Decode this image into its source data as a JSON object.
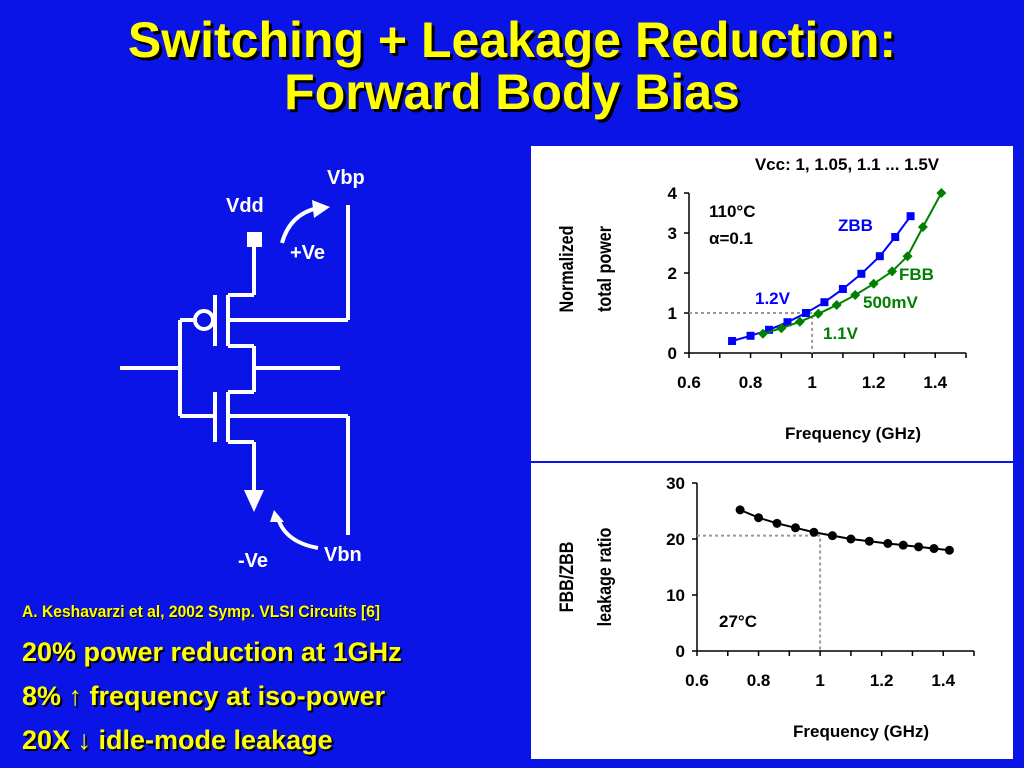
{
  "slide": {
    "title_line1": "Switching + Leakage Reduction:",
    "title_line2": "Forward Body Bias",
    "citation": "A. Keshavarzi et al, 2002 Symp. VLSI Circuits [6]",
    "bullets": [
      "20% power reduction at 1GHz",
      "8% ↑ frequency at iso-power",
      "20X ↓ idle-mode leakage"
    ]
  },
  "circuit": {
    "vdd": "Vdd",
    "vbp": "Vbp",
    "vbn": "Vbn",
    "plus_ve": "+Ve",
    "minus_ve": "-Ve"
  },
  "chart_data": [
    {
      "type": "line",
      "title": "Vcc: 1, 1.05, 1.1 ... 1.5V",
      "xlabel": "Frequency (GHz)",
      "ylabel": "Normalized total power",
      "xlim": [
        0.6,
        1.5
      ],
      "ylim": [
        0,
        4
      ],
      "xticks": [
        "0.6",
        "0.8",
        "1",
        "1.2",
        "1.4"
      ],
      "yticks": [
        "0",
        "1",
        "2",
        "3",
        "4"
      ],
      "grid": false,
      "series": [
        {
          "name": "ZBB",
          "color": "#0000ff",
          "marker": "square",
          "x": [
            0.74,
            0.8,
            0.86,
            0.92,
            0.98,
            1.04,
            1.1,
            1.16,
            1.22,
            1.27,
            1.32
          ],
          "y": [
            0.3,
            0.43,
            0.58,
            0.77,
            1.0,
            1.27,
            1.6,
            1.98,
            2.42,
            2.9,
            3.42
          ]
        },
        {
          "name": "FBB",
          "color": "#008000",
          "marker": "diamond",
          "x": [
            0.84,
            0.9,
            0.96,
            1.02,
            1.08,
            1.14,
            1.2,
            1.26,
            1.31,
            1.36,
            1.42
          ],
          "y": [
            0.48,
            0.62,
            0.78,
            0.98,
            1.2,
            1.45,
            1.73,
            2.04,
            2.42,
            3.15,
            4.0
          ]
        }
      ],
      "annotations": {
        "temp": "110°C",
        "alpha": "α=0.1",
        "zbb": "ZBB",
        "fbb": "FBB",
        "fbb_mv": "500mV",
        "v12": "1.2V",
        "v11": "1.1V"
      },
      "reference_line": {
        "x": 1.0,
        "y": 1.0
      }
    },
    {
      "type": "line",
      "xlabel": "Frequency (GHz)",
      "ylabel": "FBB/ZBB leakage ratio",
      "xlim": [
        0.6,
        1.5
      ],
      "ylim": [
        0,
        30
      ],
      "xticks": [
        "0.6",
        "0.8",
        "1",
        "1.2",
        "1.4"
      ],
      "yticks": [
        "0",
        "10",
        "20",
        "30"
      ],
      "grid": false,
      "series": [
        {
          "color": "#000000",
          "marker": "circle",
          "x": [
            0.74,
            0.8,
            0.86,
            0.92,
            0.98,
            1.04,
            1.1,
            1.16,
            1.22,
            1.27,
            1.32,
            1.37,
            1.42
          ],
          "y": [
            25.2,
            23.8,
            22.8,
            22.0,
            21.2,
            20.6,
            20.0,
            19.6,
            19.2,
            18.9,
            18.6,
            18.3,
            18.0
          ]
        }
      ],
      "annotations": {
        "temp": "27°C"
      },
      "reference_line": {
        "x": 1.0,
        "y": 20.6
      }
    }
  ]
}
